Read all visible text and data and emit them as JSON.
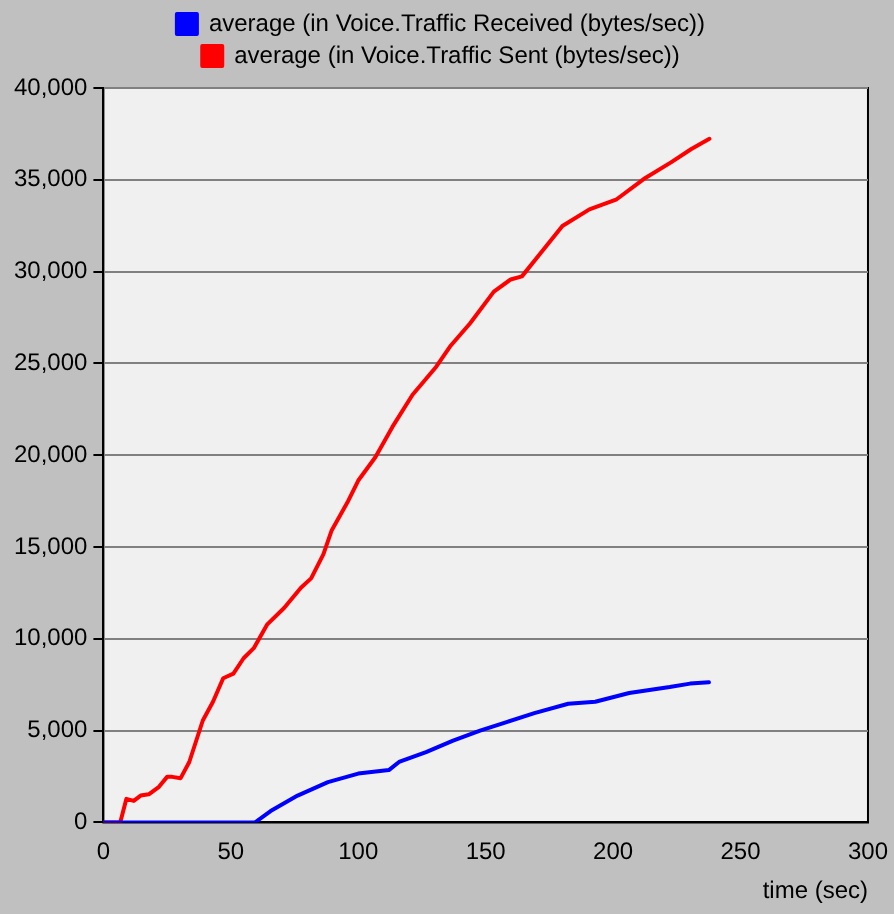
{
  "chart_data": {
    "type": "line",
    "xlabel": "time (sec)",
    "xlim": [
      0,
      300
    ],
    "xticks": [
      0,
      50,
      100,
      150,
      200,
      250,
      300
    ],
    "ylim": [
      0,
      40000
    ],
    "yticks": [
      {
        "value": 0,
        "label": "0"
      },
      {
        "value": 5000,
        "label": "5,000"
      },
      {
        "value": 10000,
        "label": "10,000"
      },
      {
        "value": 15000,
        "label": "15,000"
      },
      {
        "value": 20000,
        "label": "20,000"
      },
      {
        "value": 25000,
        "label": "25,000"
      },
      {
        "value": 30000,
        "label": "30,000"
      },
      {
        "value": 35000,
        "label": "35,000"
      },
      {
        "value": 40000,
        "label": "40,000"
      }
    ],
    "grid": "y",
    "legend": "top",
    "marker": "none",
    "line_style": "solid",
    "series": [
      {
        "name": "average (in Voice.Traffic Received (bytes/sec))",
        "color": "#0000ff",
        "x": [
          0,
          59.5,
          65.6,
          76.2,
          88.1,
          100,
          112,
          116,
          126.6,
          137.2,
          147.8,
          158.5,
          169.1,
          182.4,
          193,
          206.3,
          222.2,
          230.2,
          237.6
        ],
        "values": [
          0,
          0,
          620,
          1460,
          2190,
          2660,
          2850,
          3290,
          3830,
          4450,
          5000,
          5480,
          5950,
          6460,
          6570,
          7050,
          7370,
          7560,
          7630
        ]
      },
      {
        "name": "average (in Voice.Traffic Sent (bytes/sec))",
        "color": "#ff0000",
        "x": [
          0,
          6.6,
          9,
          11.9,
          14.6,
          17.8,
          21.8,
          25,
          27,
          30.3,
          33.7,
          39,
          43,
          47,
          51,
          55,
          59,
          64.2,
          70.9,
          77.5,
          81.5,
          86.3,
          89.5,
          96.1,
          100,
          106.7,
          113.4,
          121.3,
          130.6,
          136,
          143.9,
          153.2,
          159.8,
          164.2,
          180.1,
          190.7,
          201.4,
          212,
          222.7,
          230.7,
          237.8
        ],
        "values": [
          0,
          0,
          1280,
          1170,
          1460,
          1530,
          1940,
          2480,
          2480,
          2410,
          3290,
          5550,
          6570,
          7850,
          8100,
          8940,
          9490,
          10770,
          11680,
          12780,
          13290,
          14600,
          15880,
          17520,
          18620,
          19890,
          21540,
          23290,
          24820,
          25920,
          27190,
          28910,
          29570,
          29740,
          32480,
          33390,
          33940,
          35040,
          35950,
          36680,
          37230
        ]
      }
    ]
  }
}
